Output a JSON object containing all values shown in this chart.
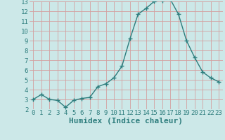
{
  "x": [
    0,
    1,
    2,
    3,
    4,
    5,
    6,
    7,
    8,
    9,
    10,
    11,
    12,
    13,
    14,
    15,
    16,
    17,
    18,
    19,
    20,
    21,
    22,
    23
  ],
  "y": [
    3.0,
    3.5,
    3.0,
    2.9,
    2.2,
    2.9,
    3.1,
    3.2,
    4.3,
    4.6,
    5.2,
    6.4,
    9.2,
    11.7,
    12.3,
    13.0,
    13.1,
    13.2,
    11.7,
    9.0,
    7.3,
    5.8,
    5.2,
    4.8
  ],
  "line_color": "#2d7d7d",
  "marker": "P",
  "marker_size": 2.5,
  "bg_color": "#cce8e8",
  "grid_color": "#d4a0a0",
  "xlabel": "Humidex (Indice chaleur)",
  "xlim": [
    -0.5,
    23.5
  ],
  "ylim": [
    2,
    13
  ],
  "yticks": [
    2,
    3,
    4,
    5,
    6,
    7,
    8,
    9,
    10,
    11,
    12,
    13
  ],
  "xticks": [
    0,
    1,
    2,
    3,
    4,
    5,
    6,
    7,
    8,
    9,
    10,
    11,
    12,
    13,
    14,
    15,
    16,
    17,
    18,
    19,
    20,
    21,
    22,
    23
  ],
  "tick_fontsize": 6.5,
  "xlabel_fontsize": 8,
  "line_width": 1.0
}
